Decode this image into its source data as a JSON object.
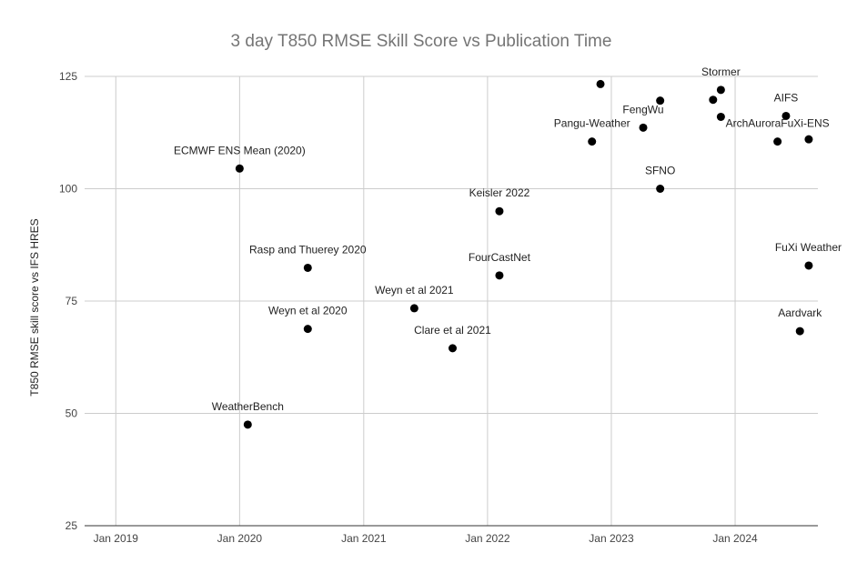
{
  "chart_data": {
    "type": "scatter",
    "title": "3 day T850 RMSE Skill Score vs Publication Time",
    "xlabel": "",
    "ylabel": "T850 RMSE skill score vs IFS HRES",
    "ylim": [
      25,
      125
    ],
    "y_ticks": [
      25,
      50,
      75,
      100,
      125
    ],
    "xlim": [
      "2018-10-01",
      "2024-09-01"
    ],
    "x_ticks": [
      {
        "date": "2019-01-01",
        "label": "Jan 2019"
      },
      {
        "date": "2020-01-01",
        "label": "Jan 2020"
      },
      {
        "date": "2021-01-01",
        "label": "Jan 2021"
      },
      {
        "date": "2022-01-01",
        "label": "Jan 2022"
      },
      {
        "date": "2023-01-01",
        "label": "Jan 2023"
      },
      {
        "date": "2024-01-01",
        "label": "Jan 2024"
      }
    ],
    "grid": true,
    "legend": "none",
    "points": [
      {
        "date": "2020-01-01",
        "y": 104.5,
        "label": "ECMWF ENS Mean (2020)"
      },
      {
        "date": "2020-01-25",
        "y": 47.5,
        "label": "WeatherBench"
      },
      {
        "date": "2020-07-20",
        "y": 82.4,
        "label": "Rasp and Thuerey 2020"
      },
      {
        "date": "2020-07-20",
        "y": 68.8,
        "label": "Weyn et al 2020"
      },
      {
        "date": "2021-05-30",
        "y": 73.4,
        "label": "Weyn et al 2021"
      },
      {
        "date": "2021-09-20",
        "y": 64.5,
        "label": "Clare et al 2021"
      },
      {
        "date": "2022-02-05",
        "y": 95.0,
        "label": "Keisler 2022"
      },
      {
        "date": "2022-02-05",
        "y": 80.7,
        "label": "FourCastNet"
      },
      {
        "date": "2022-11-05",
        "y": 110.5,
        "label": "Pangu-Weather"
      },
      {
        "date": "2022-11-30",
        "y": 123.3,
        "label": ""
      },
      {
        "date": "2023-04-05",
        "y": 113.6,
        "label": "FengWu"
      },
      {
        "date": "2023-05-25",
        "y": 119.6,
        "label": ""
      },
      {
        "date": "2023-05-25",
        "y": 100.0,
        "label": "SFNO"
      },
      {
        "date": "2023-10-28",
        "y": 119.8,
        "label": ""
      },
      {
        "date": "2023-11-20",
        "y": 122.0,
        "label": "Stormer"
      },
      {
        "date": "2023-11-20",
        "y": 116.0,
        "label": ""
      },
      {
        "date": "2024-05-05",
        "y": 110.5,
        "label": "ArchAuroraFuXi-ENS"
      },
      {
        "date": "2024-05-30",
        "y": 116.2,
        "label": "AIFS"
      },
      {
        "date": "2024-07-10",
        "y": 68.3,
        "label": "Aardvark"
      },
      {
        "date": "2024-08-05",
        "y": 111.0,
        "label": ""
      },
      {
        "date": "2024-08-05",
        "y": 82.9,
        "label": "FuXi Weather"
      }
    ]
  }
}
